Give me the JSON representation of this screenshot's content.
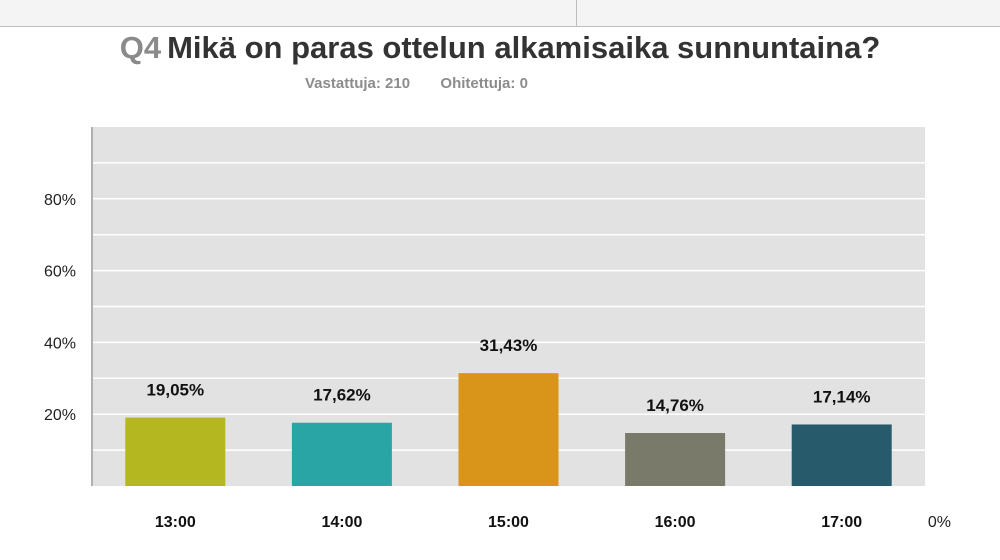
{
  "header": {
    "question_number": "Q4",
    "question_text": "Mikä on paras ottelun alkamisaika sunnuntaina?",
    "answered_label": "Vastattuja:",
    "answered_value": "210",
    "skipped_label": "Ohitettuja:",
    "skipped_value": "0"
  },
  "chart_data": {
    "type": "bar",
    "categories": [
      "13:00",
      "14:00",
      "15:00",
      "16:00",
      "17:00"
    ],
    "values": [
      19.05,
      17.62,
      31.43,
      14.76,
      17.14
    ],
    "value_labels": [
      "19,05%",
      "17,62%",
      "31,43%",
      "14,76%",
      "17,14%"
    ],
    "colors": [
      "#b4b71f",
      "#2aa5a5",
      "#d8951a",
      "#7a7a6a",
      "#275b6b"
    ],
    "ylim": [
      0,
      100
    ],
    "y_ticks": [
      0,
      20,
      40,
      60,
      80
    ],
    "y_tick_labels": [
      "0%",
      "20%",
      "40%",
      "60%",
      "80%"
    ],
    "grid": true,
    "plot_background": "#e2e2e2",
    "title": "",
    "xlabel": "",
    "ylabel": ""
  }
}
